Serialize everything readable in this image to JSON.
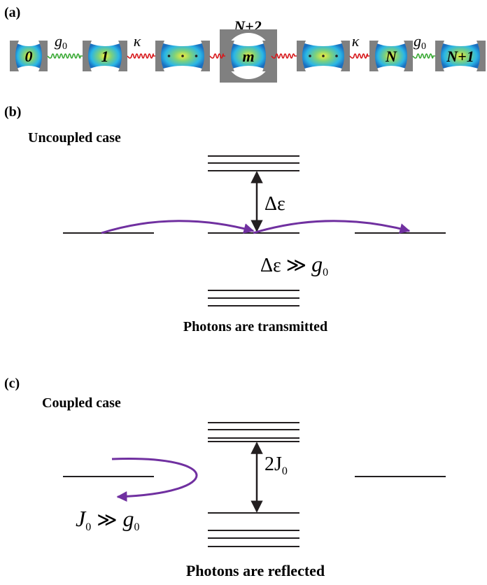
{
  "panel_a": {
    "label": "(a)",
    "top_label": "N+2",
    "cavities": [
      "0",
      "1",
      "m",
      "N",
      "N+1"
    ],
    "couplings": [
      {
        "symbol": "g",
        "sub": "0"
      },
      {
        "symbol": "κ"
      },
      {
        "symbol": "κ"
      },
      {
        "symbol": "g",
        "sub": "0"
      }
    ]
  },
  "panel_b": {
    "label": "(b)",
    "subtitle": "Uncoupled case",
    "gap": "Δε",
    "condition": {
      "lhs": "Δε",
      "rel": "≫",
      "rhs": "g",
      "rhs_sub": "0"
    },
    "caption": "Photons are transmitted"
  },
  "panel_c": {
    "label": "(c)",
    "subtitle": "Coupled case",
    "gap": {
      "main": "2J",
      "sub": "0"
    },
    "condition": {
      "lhs": "J",
      "lhs_sub": "0",
      "rel": "≫",
      "rhs": "g",
      "rhs_sub": "0"
    },
    "caption": "Photons are reflected"
  }
}
